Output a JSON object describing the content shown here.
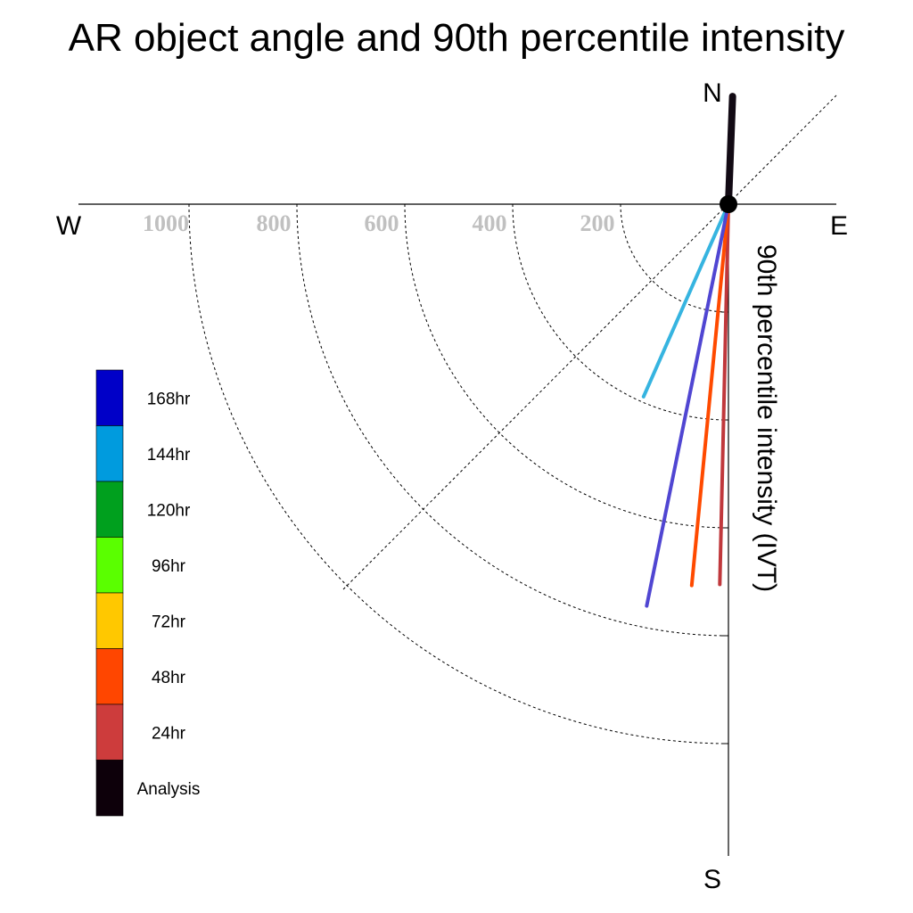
{
  "chart_data": {
    "type": "polar-vector",
    "title": "AR object angle and 90th percentile intensity",
    "compass": {
      "north": "N",
      "south": "S",
      "east": "E",
      "west": "W"
    },
    "ylabel": "90th percentile intensity (IVT)",
    "radial_ticks": [
      200,
      400,
      600,
      800,
      1000
    ],
    "radial_tick_labels": [
      "200",
      "400",
      "600",
      "800",
      "1000"
    ],
    "radial_max": 1200,
    "grid": true,
    "legend_placement": "left",
    "legend": [
      {
        "label": "168hr",
        "color": "#0000c8"
      },
      {
        "label": "144hr",
        "color": "#009bde"
      },
      {
        "label": "120hr",
        "color": "#00a01e"
      },
      {
        "label": "96hr",
        "color": "#5aff00"
      },
      {
        "label": "72hr",
        "color": "#ffc800"
      },
      {
        "label": "48hr",
        "color": "#ff4600"
      },
      {
        "label": "24hr",
        "color": "#cd3c3c"
      },
      {
        "label": "Analysis",
        "color": "#0d000a"
      }
    ],
    "series": [
      {
        "name": "Analysis",
        "color": "#120a14",
        "angle_deg": 2.2,
        "intensity": 200
      },
      {
        "name": "24hr",
        "color": "#c0383c",
        "angle_deg": 181.3,
        "intensity": 705
      },
      {
        "name": "48hr",
        "color": "#ff4a00",
        "angle_deg": 185.5,
        "intensity": 710
      },
      {
        "name": "144hr",
        "color": "#36b4e0",
        "angle_deg": 203.8,
        "intensity": 390
      },
      {
        "name": "168hr",
        "color": "#5046d2",
        "angle_deg": 191.5,
        "intensity": 760
      }
    ]
  }
}
